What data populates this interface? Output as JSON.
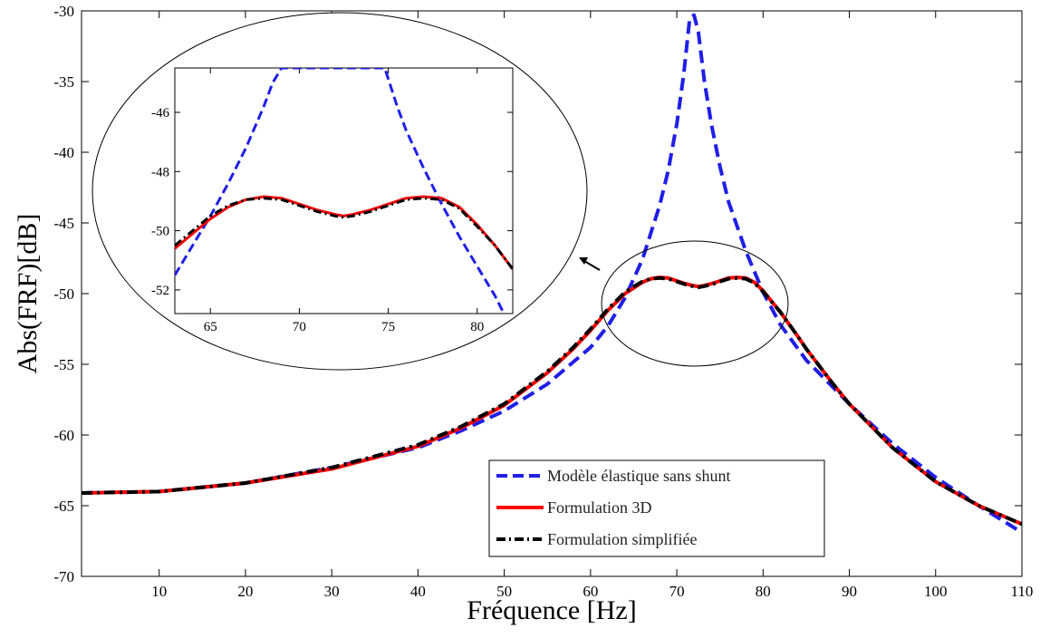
{
  "chart_data": {
    "type": "line",
    "title": "",
    "xlabel": "Fréquence [Hz]",
    "ylabel": "Abs(FRF)[dB]",
    "xlim": [
      1,
      110
    ],
    "ylim": [
      -70,
      -30
    ],
    "xticks": [
      10,
      20,
      30,
      40,
      50,
      60,
      70,
      80,
      90,
      100,
      110
    ],
    "yticks": [
      -70,
      -65,
      -60,
      -55,
      -50,
      -45,
      -40,
      -35,
      -30
    ],
    "grid": false,
    "legend_position": "bottom-right",
    "series": [
      {
        "name": "Modèle élastique sans shunt",
        "color": "#1f1fe6",
        "style": "dashed",
        "x": [
          1,
          10,
          20,
          30,
          40,
          45,
          50,
          55,
          60,
          62,
          64,
          66,
          68,
          69,
          70,
          70.8,
          71.5,
          72,
          72.5,
          73.2,
          74,
          75,
          76,
          78,
          80,
          82,
          85,
          90,
          95,
          100,
          105,
          110
        ],
        "y": [
          -64.1,
          -64.0,
          -63.4,
          -62.3,
          -60.9,
          -59.7,
          -58.3,
          -56.4,
          -53.8,
          -52.3,
          -50.3,
          -47.6,
          -43.8,
          -41.3,
          -38.0,
          -34.5,
          -30.5,
          -30.3,
          -31.5,
          -35.0,
          -38.0,
          -41.0,
          -43.5,
          -47.0,
          -49.9,
          -52.2,
          -54.7,
          -57.8,
          -60.6,
          -63.0,
          -65.0,
          -66.9
        ]
      },
      {
        "name": "Formulation 3D",
        "color": "#ff0000",
        "style": "solid",
        "x": [
          1,
          10,
          20,
          30,
          40,
          45,
          50,
          55,
          58,
          60,
          62,
          64,
          65,
          66,
          67,
          68,
          69,
          70,
          71,
          72,
          72.5,
          73,
          74,
          75,
          76,
          77,
          78,
          79,
          80,
          82,
          84,
          85,
          88,
          90,
          95,
          100,
          105,
          110
        ],
        "y": [
          -64.1,
          -64.0,
          -63.4,
          -62.4,
          -60.8,
          -59.5,
          -57.9,
          -55.6,
          -53.9,
          -52.6,
          -51.2,
          -50.0,
          -49.6,
          -49.2,
          -48.95,
          -48.85,
          -48.9,
          -49.1,
          -49.3,
          -49.45,
          -49.5,
          -49.45,
          -49.3,
          -49.1,
          -48.9,
          -48.85,
          -48.9,
          -49.2,
          -49.8,
          -51.3,
          -53.0,
          -53.9,
          -56.3,
          -57.8,
          -60.9,
          -63.3,
          -65.0,
          -66.3
        ]
      },
      {
        "name": "Formulation simplifiée",
        "color": "#000000",
        "style": "dashdot",
        "x": [
          1,
          10,
          20,
          30,
          40,
          45,
          50,
          55,
          58,
          60,
          62,
          64,
          65,
          66,
          67,
          68,
          69,
          70,
          71,
          72,
          72.5,
          73,
          74,
          75,
          76,
          77,
          78,
          79,
          80,
          82,
          84,
          85,
          88,
          90,
          95,
          100,
          105,
          110
        ],
        "y": [
          -64.1,
          -64.0,
          -63.4,
          -62.3,
          -60.7,
          -59.4,
          -57.8,
          -55.5,
          -53.8,
          -52.5,
          -51.1,
          -49.9,
          -49.5,
          -49.15,
          -48.95,
          -48.9,
          -48.95,
          -49.15,
          -49.35,
          -49.5,
          -49.55,
          -49.5,
          -49.35,
          -49.15,
          -48.95,
          -48.9,
          -48.95,
          -49.25,
          -49.85,
          -51.3,
          -53.0,
          -53.9,
          -56.3,
          -57.8,
          -60.9,
          -63.3,
          -65.0,
          -66.3
        ]
      }
    ],
    "inset": {
      "xlim": [
        63,
        82
      ],
      "ylim": [
        -52.8,
        -44.5
      ],
      "xticks": [
        65,
        70,
        75,
        80
      ],
      "yticks": [
        -46,
        -48,
        -50,
        -52
      ],
      "series": [
        {
          "name": "Modèle élastique sans shunt",
          "x": [
            63,
            64,
            65,
            66,
            67,
            68,
            68.5,
            69,
            74.8,
            75.5,
            76,
            77,
            78,
            79,
            80,
            81,
            81.5
          ],
          "y": [
            -51.5,
            -50.5,
            -49.5,
            -48.4,
            -47.2,
            -45.8,
            -45.0,
            -44.5,
            -44.5,
            -45.8,
            -46.6,
            -47.9,
            -49.1,
            -50.2,
            -51.2,
            -52.2,
            -52.8
          ]
        },
        {
          "name": "Formulation 3D",
          "x": [
            63,
            64,
            65,
            66,
            67,
            68,
            69,
            70,
            71,
            72,
            72.5,
            73,
            74,
            75,
            76,
            77,
            78,
            79,
            80,
            81,
            82
          ],
          "y": [
            -50.6,
            -50.1,
            -49.6,
            -49.2,
            -48.95,
            -48.85,
            -48.9,
            -49.1,
            -49.3,
            -49.45,
            -49.5,
            -49.45,
            -49.3,
            -49.1,
            -48.9,
            -48.85,
            -48.9,
            -49.2,
            -49.8,
            -50.5,
            -51.3
          ]
        },
        {
          "name": "Formulation simplifiée",
          "x": [
            63,
            64,
            65,
            66,
            67,
            68,
            69,
            70,
            71,
            72,
            72.5,
            73,
            74,
            75,
            76,
            77,
            78,
            79,
            80,
            81,
            82
          ],
          "y": [
            -50.5,
            -50.0,
            -49.5,
            -49.15,
            -48.95,
            -48.9,
            -48.95,
            -49.15,
            -49.35,
            -49.5,
            -49.55,
            -49.5,
            -49.35,
            -49.15,
            -48.95,
            -48.9,
            -48.95,
            -49.25,
            -49.85,
            -50.5,
            -51.3
          ]
        }
      ]
    }
  }
}
